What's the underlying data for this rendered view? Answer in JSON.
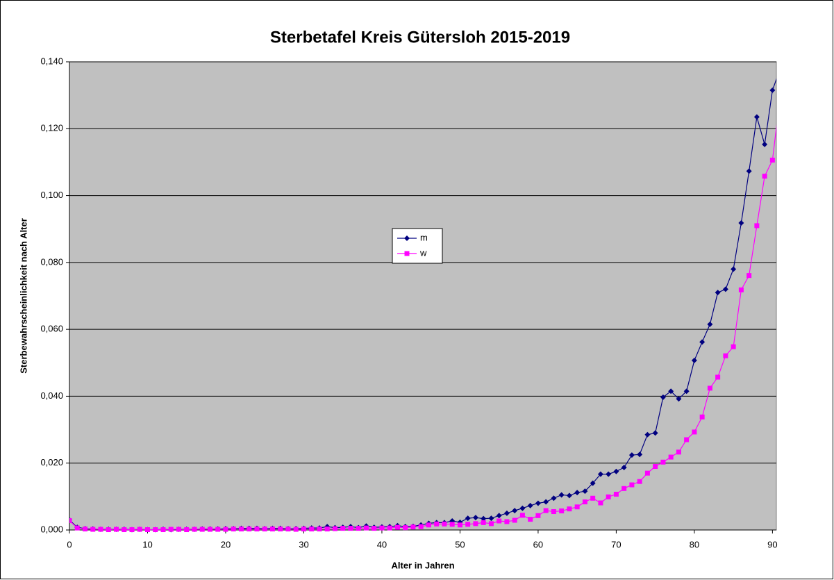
{
  "chart_data": {
    "type": "line",
    "title": "Sterbetafel Kreis Gütersloh 2015-2019",
    "x_label": "Alter in Jahren",
    "y_label": "Sterbewahrscheinlichkeit nach Alter",
    "x": [
      0,
      1,
      2,
      3,
      4,
      5,
      6,
      7,
      8,
      9,
      10,
      11,
      12,
      13,
      14,
      15,
      16,
      17,
      18,
      19,
      20,
      21,
      22,
      23,
      24,
      25,
      26,
      27,
      28,
      29,
      30,
      31,
      32,
      33,
      34,
      35,
      36,
      37,
      38,
      39,
      40,
      41,
      42,
      43,
      44,
      45,
      46,
      47,
      48,
      49,
      50,
      51,
      52,
      53,
      54,
      55,
      56,
      57,
      58,
      59,
      60,
      61,
      62,
      63,
      64,
      65,
      66,
      67,
      68,
      69,
      70,
      71,
      72,
      73,
      74,
      75,
      76,
      77,
      78,
      79,
      80,
      81,
      82,
      83,
      84,
      85,
      86,
      87,
      88,
      89,
      90,
      91
    ],
    "series": [
      {
        "name": "m",
        "color": "#000080",
        "marker": "diamond",
        "values": [
          0.003,
          0.0008,
          0.0004,
          0.0003,
          0.0002,
          0.0002,
          0.0002,
          0.0002,
          0.0001,
          0.0002,
          0.0001,
          0.0001,
          0.0002,
          0.0001,
          0.0002,
          0.0002,
          0.0002,
          0.0003,
          0.0003,
          0.0003,
          0.0004,
          0.0004,
          0.0005,
          0.0005,
          0.0005,
          0.0004,
          0.0005,
          0.0005,
          0.0004,
          0.0004,
          0.0005,
          0.0006,
          0.0006,
          0.001,
          0.0007,
          0.0008,
          0.001,
          0.0007,
          0.0012,
          0.0008,
          0.0009,
          0.001,
          0.0013,
          0.001,
          0.0011,
          0.0015,
          0.002,
          0.0022,
          0.0022,
          0.0027,
          0.0023,
          0.0035,
          0.0037,
          0.0034,
          0.0035,
          0.0043,
          0.005,
          0.0058,
          0.0065,
          0.0073,
          0.008,
          0.0084,
          0.0095,
          0.0105,
          0.0103,
          0.0112,
          0.0116,
          0.014,
          0.0167,
          0.0167,
          0.0175,
          0.0187,
          0.0224,
          0.0226,
          0.0285,
          0.029,
          0.0397,
          0.0415,
          0.0392,
          0.0415,
          0.0507,
          0.0562,
          0.0615,
          0.071,
          0.072,
          0.078,
          0.0918,
          0.1073,
          0.1235,
          0.1153,
          0.1315,
          0.138
        ]
      },
      {
        "name": "w",
        "color": "#ff00ff",
        "marker": "square",
        "values": [
          0.0028,
          0.0006,
          0.0003,
          0.0002,
          0.0002,
          0.0001,
          0.0002,
          0.0001,
          0.0001,
          0.0002,
          0.0001,
          0.0001,
          0.0001,
          0.0002,
          0.0002,
          0.0001,
          0.0002,
          0.0002,
          0.0002,
          0.0002,
          0.0002,
          0.0003,
          0.0003,
          0.0003,
          0.0003,
          0.0003,
          0.0003,
          0.0003,
          0.0003,
          0.0002,
          0.0003,
          0.0003,
          0.0003,
          0.0003,
          0.0004,
          0.0005,
          0.0005,
          0.0005,
          0.0006,
          0.0005,
          0.0006,
          0.0006,
          0.0008,
          0.0007,
          0.0009,
          0.001,
          0.0015,
          0.0018,
          0.0018,
          0.0017,
          0.0015,
          0.0017,
          0.0019,
          0.0022,
          0.0019,
          0.0027,
          0.0025,
          0.0029,
          0.0044,
          0.0032,
          0.0043,
          0.0058,
          0.0055,
          0.0057,
          0.0063,
          0.0069,
          0.0084,
          0.0095,
          0.0081,
          0.0099,
          0.0107,
          0.0124,
          0.0135,
          0.0145,
          0.017,
          0.019,
          0.0203,
          0.0218,
          0.0233,
          0.027,
          0.0293,
          0.0338,
          0.0424,
          0.0457,
          0.0521,
          0.0548,
          0.0718,
          0.0761,
          0.091,
          0.1058,
          0.1106,
          0.13
        ]
      }
    ],
    "xlim": [
      0,
      90.5
    ],
    "xticks": [
      0,
      10,
      20,
      30,
      40,
      50,
      60,
      70,
      80,
      90
    ],
    "ylim": [
      0,
      0.14
    ],
    "yticks": [
      {
        "value": 0,
        "label": "0,000"
      },
      {
        "value": 0.02,
        "label": "0,020"
      },
      {
        "value": 0.04,
        "label": "0,040"
      },
      {
        "value": 0.06,
        "label": "0,060"
      },
      {
        "value": 0.08,
        "label": "0,080"
      },
      {
        "value": 0.1,
        "label": "0,100"
      },
      {
        "value": 0.12,
        "label": "0,120"
      },
      {
        "value": 0.14,
        "label": "0,140"
      }
    ],
    "grid": true,
    "background": "#c0c0c0"
  }
}
